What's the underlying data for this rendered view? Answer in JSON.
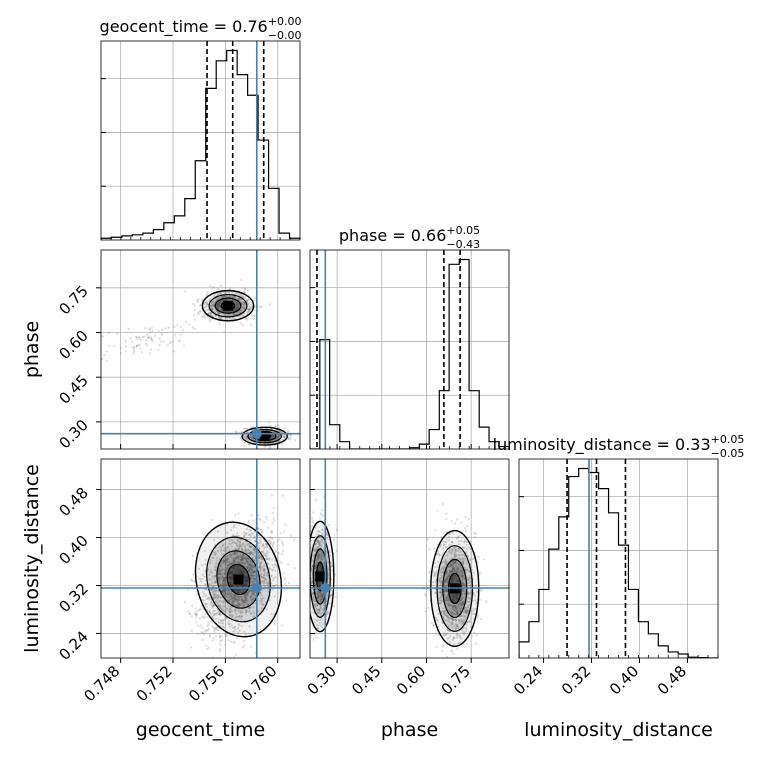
{
  "colors": {
    "truth": "#4682b4",
    "hist": "#000000",
    "grid": "#b0b0b0",
    "points": "#7f7f7f",
    "density_dark": "#000000"
  },
  "chart_data": {
    "type": "corner",
    "grid": true,
    "parameters": [
      "geocent_time",
      "phase",
      "luminosity_distance"
    ],
    "truths": {
      "geocent_time": 0.7584,
      "phase": 0.2604,
      "luminosity_distance": 0.3158
    },
    "axes_labels": {
      "geocent_time": "geocent_time",
      "phase": "phase",
      "luminosity_distance": "luminosity_distance"
    },
    "ranges": {
      "geocent_time": [
        0.7465,
        0.7617
      ],
      "phase": [
        0.209,
        0.877
      ],
      "luminosity_distance": [
        0.199,
        0.531
      ]
    },
    "ticks": {
      "geocent_time": [
        "0.748",
        "0.752",
        "0.756",
        "0.760"
      ],
      "phase": [
        "0.30",
        "0.45",
        "0.60",
        "0.75"
      ],
      "luminosity_distance": [
        "0.24",
        "0.32",
        "0.40",
        "0.48"
      ]
    },
    "titles": [
      {
        "param": "geocent_time",
        "prefix": "geocent_time = 0.76",
        "plus": "+0.00",
        "minus": "−0.00"
      },
      {
        "param": "phase",
        "prefix": "phase = 0.66",
        "plus": "+0.05",
        "minus": "−0.43"
      },
      {
        "param": "luminosity_distance",
        "prefix": "luminosity_distance = 0.33",
        "plus": "+0.05",
        "minus": "−0.05"
      }
    ],
    "marginals": [
      {
        "param": "geocent_time",
        "bins": [
          0.7465,
          0.7473,
          0.7481,
          0.7489,
          0.7497,
          0.7505,
          0.7513,
          0.7521,
          0.7529,
          0.7537,
          0.7545,
          0.7553,
          0.7561,
          0.7569,
          0.7577,
          0.7585,
          0.7593,
          0.7601,
          0.7609,
          0.7617
        ],
        "counts": [
          0.5,
          0.8,
          1.2,
          1.5,
          2.0,
          3.0,
          5.0,
          7.0,
          12.0,
          23.0,
          44.0,
          52.0,
          55.0,
          48.0,
          42.0,
          29.0,
          15.0,
          2.0,
          0.5
        ],
        "quantiles": [
          0.7546,
          0.75656,
          0.75893
        ]
      },
      {
        "param": "phase",
        "bins": [
          0.209,
          0.242,
          0.275,
          0.309,
          0.342,
          0.376,
          0.409,
          0.442,
          0.476,
          0.509,
          0.543,
          0.576,
          0.609,
          0.643,
          0.676,
          0.71,
          0.743,
          0.777,
          0.81,
          0.843,
          0.877
        ],
        "counts": [
          0.0,
          45.0,
          10.0,
          3.0,
          0.0,
          0.0,
          0.0,
          0.0,
          0.0,
          0.0,
          0.5,
          2.0,
          8.0,
          24.0,
          76.0,
          78.0,
          24.0,
          9.0,
          3.0,
          1.0
        ],
        "quantiles": [
          0.2325,
          0.6584,
          0.7128
        ]
      },
      {
        "param": "luminosity_distance",
        "bins": [
          0.199,
          0.2156,
          0.2322,
          0.2488,
          0.2654,
          0.282,
          0.2986,
          0.3152,
          0.3318,
          0.3484,
          0.365,
          0.3816,
          0.3982,
          0.4148,
          0.4314,
          0.448,
          0.4646,
          0.4812,
          0.4978,
          0.5144,
          0.531
        ],
        "counts": [
          4.0,
          9.0,
          17.0,
          27.0,
          35.0,
          45.0,
          47.0,
          46.0,
          42.0,
          36.0,
          28.0,
          17.0,
          9.0,
          6.0,
          3.0,
          1.5,
          1.0,
          0.2,
          0.1,
          0.0
        ],
        "quantiles": [
          0.2792,
          0.3283,
          0.3766
        ]
      }
    ],
    "joint_distributions": [
      {
        "x": "geocent_time",
        "y": "phase",
        "modes": [
          {
            "x_mean": 0.7562,
            "y_mean": 0.69,
            "x_sd": 0.00085,
            "y_sd": 0.022,
            "weight": 0.55
          },
          {
            "x_mean": 0.759,
            "y_mean": 0.252,
            "x_sd": 0.00075,
            "y_sd": 0.013,
            "weight": 0.4
          },
          {
            "x_mean": 0.75,
            "y_mean": 0.575,
            "x_sd": 0.002,
            "y_sd": 0.03,
            "weight": 0.05,
            "tilt": 0.8
          }
        ]
      },
      {
        "x": "geocent_time",
        "y": "luminosity_distance",
        "modes": [
          {
            "x_mean": 0.757,
            "y_mean": 0.33,
            "x_sd": 0.0014,
            "y_sd": 0.042,
            "weight": 1.0,
            "tilt": 0.45
          }
        ]
      },
      {
        "x": "phase",
        "y": "luminosity_distance",
        "modes": [
          {
            "x_mean": 0.243,
            "y_mean": 0.335,
            "x_sd": 0.02,
            "y_sd": 0.04,
            "weight": 0.4
          },
          {
            "x_mean": 0.695,
            "y_mean": 0.315,
            "x_sd": 0.035,
            "y_sd": 0.042,
            "weight": 0.6
          }
        ]
      }
    ]
  }
}
